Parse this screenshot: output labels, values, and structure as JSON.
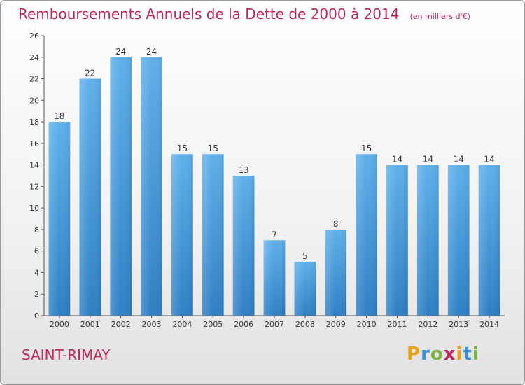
{
  "chart_data": {
    "type": "bar",
    "title": "Remboursements Annuels de la Dette de 2000 à 2014",
    "unit": "(en milliers d'€)",
    "categories": [
      "2000",
      "2001",
      "2002",
      "2003",
      "2004",
      "2005",
      "2006",
      "2007",
      "2008",
      "2009",
      "2010",
      "2011",
      "2012",
      "2013",
      "2014"
    ],
    "values": [
      18,
      22,
      24,
      24,
      15,
      15,
      13,
      7,
      5,
      8,
      15,
      14,
      14,
      14,
      14
    ],
    "ylim": [
      0,
      26
    ],
    "yticks": [
      0,
      2,
      4,
      6,
      8,
      10,
      12,
      14,
      16,
      18,
      20,
      22,
      24,
      26
    ],
    "xlabel": "",
    "ylabel": "",
    "grid": false,
    "bar_color": "#3f92d6"
  },
  "footer": {
    "commune": "SAINT-RIMAY",
    "brand": [
      "P",
      "r",
      "o",
      "x",
      "i",
      "t",
      "i"
    ],
    "brand_colors": [
      "#e8a21a",
      "#3a8fd0",
      "#7cb342",
      "#c0245c",
      "#e8a21a",
      "#3a8fd0",
      "#7cb342"
    ]
  }
}
